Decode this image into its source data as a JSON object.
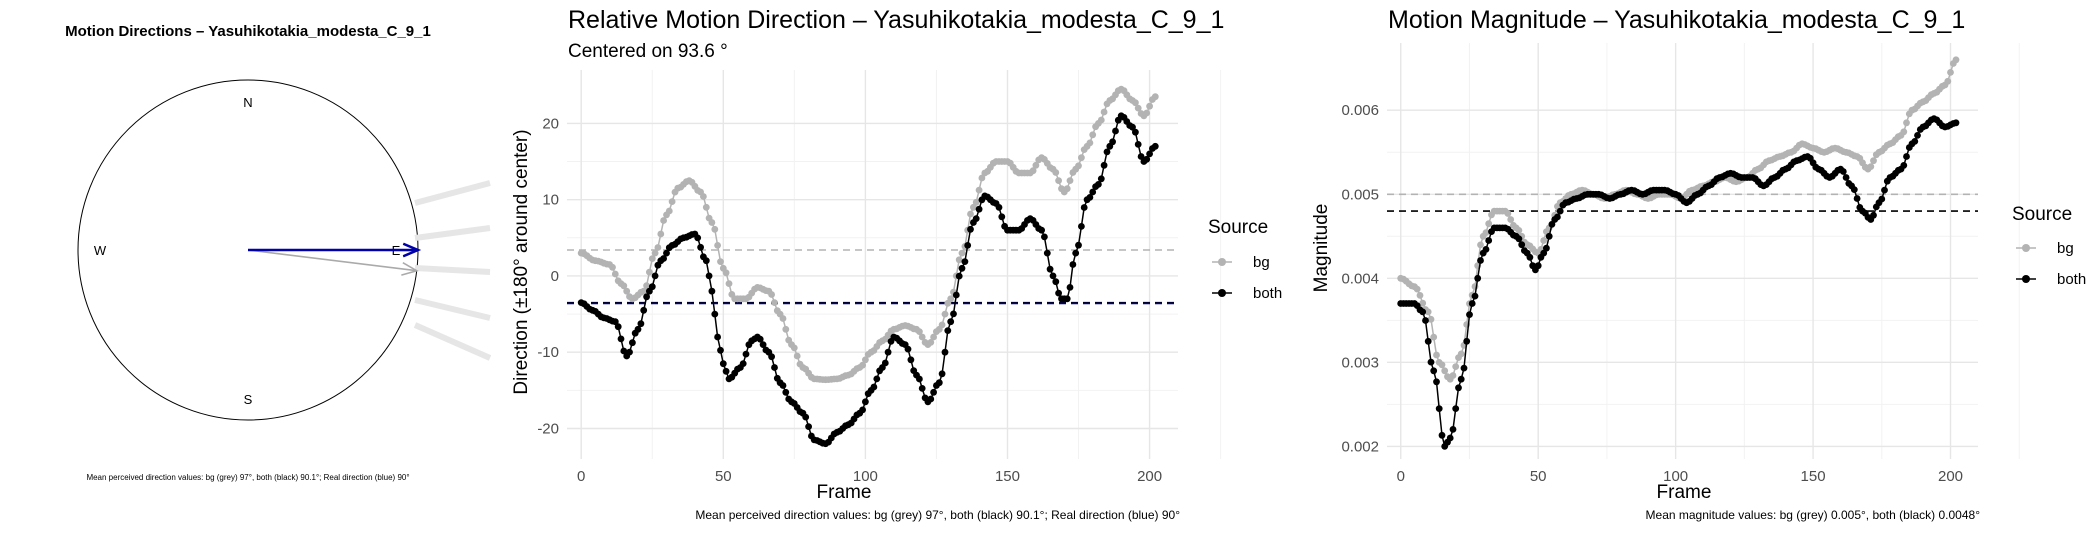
{
  "chart_data": [
    {
      "type": "compass",
      "title": "Motion Directions – Yasuhikotakia_modesta_C_9_1",
      "labels": {
        "north": "N",
        "south": "S",
        "east": "E",
        "west": "W"
      },
      "arrows": [
        {
          "name": "bg",
          "direction_deg": 97,
          "color": "#aaaaaa"
        },
        {
          "name": "both",
          "direction_deg": 90.1,
          "color": "#000000"
        },
        {
          "name": "real",
          "direction_deg": 90,
          "color": "#0000aa"
        }
      ],
      "caption": "Mean perceived direction values: bg (grey) 97°, both (black) 90.1°; Real direction (blue) 90°"
    },
    {
      "type": "line",
      "title": "Relative Motion Direction – Yasuhikotakia_modesta_C_9_1",
      "subtitle": "Centered on  93.6 °",
      "xlabel": "Frame",
      "ylabel": "Direction (±180° around center)",
      "xlim": [
        -5,
        210
      ],
      "ylim": [
        -24,
        27
      ],
      "xticks": [
        0,
        50,
        100,
        150,
        200
      ],
      "yticks": [
        -20,
        -10,
        0,
        10,
        20
      ],
      "grid": true,
      "legend": {
        "title": "Source",
        "position": "right"
      },
      "series": [
        {
          "name": "bg",
          "color": "#b3b3b3",
          "points": [
            [
              0,
              3
            ],
            [
              5,
              2
            ],
            [
              10,
              1.5
            ],
            [
              14,
              -1
            ],
            [
              18,
              -3
            ],
            [
              22,
              -2
            ],
            [
              26,
              3
            ],
            [
              30,
              8
            ],
            [
              34,
              11.5
            ],
            [
              38,
              12.5
            ],
            [
              42,
              11
            ],
            [
              46,
              7
            ],
            [
              50,
              1
            ],
            [
              54,
              -3
            ],
            [
              58,
              -3
            ],
            [
              62,
              -1.5
            ],
            [
              66,
              -2
            ],
            [
              70,
              -5
            ],
            [
              74,
              -9
            ],
            [
              78,
              -12
            ],
            [
              82,
              -13.5
            ],
            [
              86,
              -13.6
            ],
            [
              90,
              -13.5
            ],
            [
              94,
              -13
            ],
            [
              98,
              -12
            ],
            [
              102,
              -10
            ],
            [
              106,
              -8.5
            ],
            [
              110,
              -7
            ],
            [
              114,
              -6.5
            ],
            [
              118,
              -7
            ],
            [
              122,
              -9
            ],
            [
              126,
              -7
            ],
            [
              130,
              -3
            ],
            [
              134,
              3
            ],
            [
              138,
              9
            ],
            [
              142,
              13.5
            ],
            [
              146,
              15
            ],
            [
              150,
              15
            ],
            [
              154,
              13.5
            ],
            [
              158,
              13.5
            ],
            [
              162,
              15.5
            ],
            [
              166,
              14
            ],
            [
              170,
              11
            ],
            [
              174,
              14
            ],
            [
              178,
              17
            ],
            [
              182,
              20
            ],
            [
              186,
              23
            ],
            [
              190,
              24.5
            ],
            [
              194,
              23
            ],
            [
              198,
              21
            ],
            [
              202,
              23.5
            ]
          ]
        },
        {
          "name": "both",
          "color": "#000000",
          "points": [
            [
              0,
              -3.5
            ],
            [
              4,
              -4.5
            ],
            [
              8,
              -5.5
            ],
            [
              12,
              -6
            ],
            [
              16,
              -10.5
            ],
            [
              20,
              -7
            ],
            [
              24,
              -2
            ],
            [
              28,
              2
            ],
            [
              32,
              4
            ],
            [
              36,
              5
            ],
            [
              40,
              5.5
            ],
            [
              44,
              2
            ],
            [
              46,
              -2
            ],
            [
              48,
              -8
            ],
            [
              50,
              -11.5
            ],
            [
              52,
              -13.5
            ],
            [
              56,
              -12
            ],
            [
              60,
              -8.5
            ],
            [
              62,
              -8
            ],
            [
              66,
              -10
            ],
            [
              70,
              -14
            ],
            [
              74,
              -16.5
            ],
            [
              78,
              -18
            ],
            [
              82,
              -21.5
            ],
            [
              86,
              -22
            ],
            [
              90,
              -20.5
            ],
            [
              94,
              -19.5
            ],
            [
              98,
              -18
            ],
            [
              102,
              -15
            ],
            [
              106,
              -12
            ],
            [
              110,
              -8
            ],
            [
              114,
              -9
            ],
            [
              118,
              -13
            ],
            [
              122,
              -16.5
            ],
            [
              126,
              -14
            ],
            [
              130,
              -6
            ],
            [
              134,
              1
            ],
            [
              138,
              7
            ],
            [
              142,
              10.5
            ],
            [
              146,
              9.5
            ],
            [
              150,
              6
            ],
            [
              154,
              6
            ],
            [
              158,
              7.5
            ],
            [
              162,
              6
            ],
            [
              166,
              0
            ],
            [
              169,
              -3
            ],
            [
              171,
              -3
            ],
            [
              174,
              3
            ],
            [
              178,
              10
            ],
            [
              182,
              12
            ],
            [
              186,
              17
            ],
            [
              190,
              21
            ],
            [
              194,
              19.5
            ],
            [
              198,
              15
            ],
            [
              202,
              17
            ]
          ]
        }
      ],
      "reference_lines": [
        {
          "name": "bg",
          "value": 3.4,
          "color": "#b3b3b3"
        },
        {
          "name": "both",
          "value": -3.5,
          "color": "#000000"
        },
        {
          "name": "real",
          "value": -3.6,
          "color": "#00008b"
        }
      ],
      "caption": "Mean perceived direction values: bg (grey) 97°, both (black) 90.1°; Real direction (blue) 90°"
    },
    {
      "type": "line",
      "title": "Motion Magnitude – Yasuhikotakia_modesta_C_9_1",
      "xlabel": "Frame",
      "ylabel": "Magnitude",
      "xlim": [
        -5,
        210
      ],
      "ylim": [
        0.00185,
        0.0068
      ],
      "xticks": [
        0,
        50,
        100,
        150,
        200
      ],
      "yticks": [
        0.002,
        0.003,
        0.004,
        0.005,
        0.006
      ],
      "ytick_labels": [
        "0.002",
        "0.003",
        "0.004",
        "0.005",
        "0.006"
      ],
      "grid": true,
      "legend": {
        "title": "Source",
        "position": "right"
      },
      "series": [
        {
          "name": "bg",
          "color": "#b3b3b3",
          "points": [
            [
              0,
              0.004
            ],
            [
              5,
              0.0039
            ],
            [
              10,
              0.0036
            ],
            [
              14,
              0.003
            ],
            [
              18,
              0.0028
            ],
            [
              22,
              0.0031
            ],
            [
              26,
              0.0038
            ],
            [
              30,
              0.0045
            ],
            [
              34,
              0.0048
            ],
            [
              38,
              0.0048
            ],
            [
              42,
              0.0046
            ],
            [
              46,
              0.0044
            ],
            [
              50,
              0.0043
            ],
            [
              54,
              0.0046
            ],
            [
              58,
              0.0049
            ],
            [
              62,
              0.005
            ],
            [
              66,
              0.00505
            ],
            [
              70,
              0.005
            ],
            [
              74,
              0.00495
            ],
            [
              78,
              0.005
            ],
            [
              82,
              0.00505
            ],
            [
              86,
              0.005
            ],
            [
              90,
              0.00495
            ],
            [
              94,
              0.005
            ],
            [
              98,
              0.005
            ],
            [
              102,
              0.00495
            ],
            [
              106,
              0.00505
            ],
            [
              110,
              0.0051
            ],
            [
              114,
              0.00515
            ],
            [
              118,
              0.0052
            ],
            [
              122,
              0.00515
            ],
            [
              126,
              0.0052
            ],
            [
              130,
              0.0053
            ],
            [
              134,
              0.0054
            ],
            [
              138,
              0.00545
            ],
            [
              142,
              0.0055
            ],
            [
              146,
              0.0056
            ],
            [
              150,
              0.00555
            ],
            [
              154,
              0.0055
            ],
            [
              158,
              0.00555
            ],
            [
              162,
              0.0055
            ],
            [
              166,
              0.00545
            ],
            [
              170,
              0.0053
            ],
            [
              174,
              0.0055
            ],
            [
              178,
              0.0056
            ],
            [
              182,
              0.0057
            ],
            [
              186,
              0.006
            ],
            [
              190,
              0.0061
            ],
            [
              194,
              0.0062
            ],
            [
              198,
              0.0063
            ],
            [
              202,
              0.0066
            ]
          ]
        },
        {
          "name": "both",
          "color": "#000000",
          "points": [
            [
              0,
              0.0037
            ],
            [
              5,
              0.0037
            ],
            [
              8,
              0.0036
            ],
            [
              12,
              0.0029
            ],
            [
              16,
              0.002
            ],
            [
              18,
              0.0021
            ],
            [
              22,
              0.0028
            ],
            [
              26,
              0.0037
            ],
            [
              30,
              0.0043
            ],
            [
              34,
              0.0046
            ],
            [
              38,
              0.0046
            ],
            [
              42,
              0.0045
            ],
            [
              46,
              0.0043
            ],
            [
              49,
              0.0041
            ],
            [
              52,
              0.0043
            ],
            [
              56,
              0.0047
            ],
            [
              60,
              0.0049
            ],
            [
              64,
              0.00495
            ],
            [
              68,
              0.005
            ],
            [
              72,
              0.005
            ],
            [
              76,
              0.00495
            ],
            [
              80,
              0.005
            ],
            [
              84,
              0.00505
            ],
            [
              88,
              0.005
            ],
            [
              92,
              0.00505
            ],
            [
              96,
              0.00505
            ],
            [
              100,
              0.005
            ],
            [
              104,
              0.0049
            ],
            [
              108,
              0.005
            ],
            [
              112,
              0.0051
            ],
            [
              116,
              0.0052
            ],
            [
              120,
              0.00525
            ],
            [
              124,
              0.0052
            ],
            [
              128,
              0.0052
            ],
            [
              132,
              0.0051
            ],
            [
              136,
              0.0052
            ],
            [
              140,
              0.0053
            ],
            [
              144,
              0.0054
            ],
            [
              148,
              0.00545
            ],
            [
              152,
              0.0053
            ],
            [
              156,
              0.0052
            ],
            [
              160,
              0.0053
            ],
            [
              164,
              0.0051
            ],
            [
              168,
              0.0048
            ],
            [
              171,
              0.0047
            ],
            [
              174,
              0.0049
            ],
            [
              178,
              0.0052
            ],
            [
              182,
              0.0053
            ],
            [
              186,
              0.0056
            ],
            [
              190,
              0.0058
            ],
            [
              194,
              0.0059
            ],
            [
              198,
              0.0058
            ],
            [
              202,
              0.00585
            ]
          ]
        }
      ],
      "reference_lines": [
        {
          "name": "bg",
          "value": 0.005,
          "color": "#b3b3b3"
        },
        {
          "name": "both",
          "value": 0.0048,
          "color": "#000000"
        }
      ],
      "caption": "Mean magnitude values: bg (grey) 0.005°, both (black) 0.0048°"
    }
  ]
}
